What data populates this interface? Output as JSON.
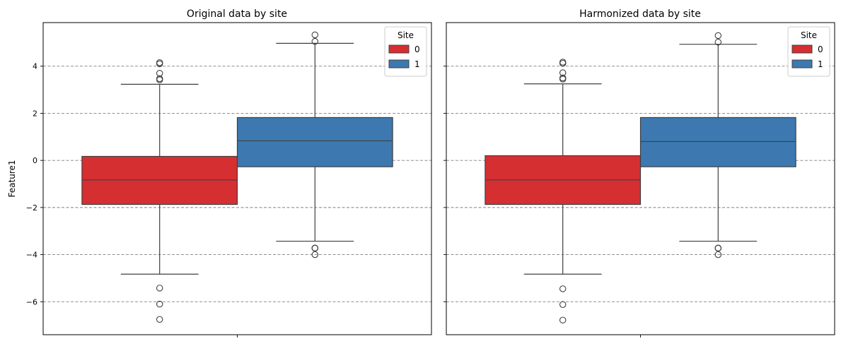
{
  "chart_data": [
    {
      "type": "box",
      "title": "Original data by site",
      "xlabel": "",
      "ylabel": "Feature1",
      "ylim": [
        -7.4,
        5.85
      ],
      "yticks": [
        -6,
        -4,
        -2,
        0,
        2,
        4
      ],
      "grid": "y, dashed",
      "legend": {
        "title": "Site",
        "placement": "top-right",
        "entries": [
          "0",
          "1"
        ]
      },
      "series": [
        {
          "name": "0",
          "color": "#d62f32",
          "q1": -1.87,
          "median": -0.83,
          "q3": 0.17,
          "whisker_low": -4.83,
          "whisker_high": 3.23,
          "outliers": [
            3.42,
            3.47,
            3.7,
            4.1,
            4.15,
            -5.42,
            -6.1,
            -6.75
          ]
        },
        {
          "name": "1",
          "color": "#3d79b0",
          "q1": -0.27,
          "median": 0.83,
          "q3": 1.82,
          "whisker_low": -3.43,
          "whisker_high": 4.97,
          "outliers": [
            5.05,
            5.33,
            -3.72,
            -3.73,
            -4.0
          ]
        }
      ]
    },
    {
      "type": "box",
      "title": "Harmonized data by site",
      "xlabel": "",
      "ylabel": "",
      "ylim": [
        -7.4,
        5.85
      ],
      "yticks": [
        -6,
        -4,
        -2,
        0,
        2,
        4
      ],
      "grid": "y, dashed",
      "legend": {
        "title": "Site",
        "placement": "top-right",
        "entries": [
          "0",
          "1"
        ]
      },
      "series": [
        {
          "name": "0",
          "color": "#d62f32",
          "q1": -1.87,
          "median": -0.83,
          "q3": 0.2,
          "whisker_low": -4.83,
          "whisker_high": 3.25,
          "outliers": [
            3.45,
            3.5,
            3.72,
            4.12,
            4.17,
            -5.45,
            -6.12,
            -6.78
          ]
        },
        {
          "name": "1",
          "color": "#3d79b0",
          "q1": -0.27,
          "median": 0.8,
          "q3": 1.82,
          "whisker_low": -3.43,
          "whisker_high": 4.93,
          "outliers": [
            5.02,
            5.3,
            -3.72,
            -3.73,
            -4.0
          ]
        }
      ]
    }
  ]
}
